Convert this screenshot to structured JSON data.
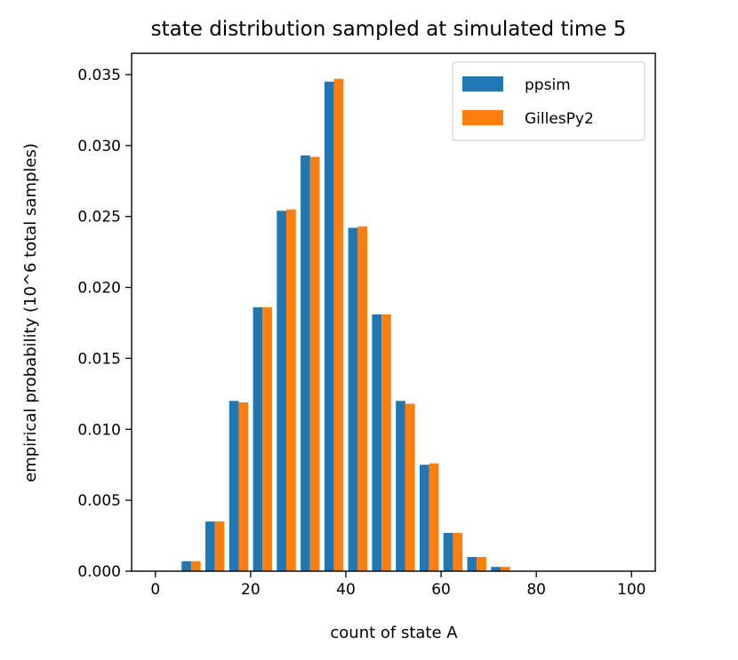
{
  "chart_data": {
    "type": "bar",
    "title": "state distribution sampled at simulated time 5",
    "xlabel": "count of state A",
    "ylabel": "empirical probability (10^6 total samples)",
    "xlim": [
      -5,
      105
    ],
    "ylim": [
      0,
      0.0365
    ],
    "xticks": [
      "0",
      "20",
      "40",
      "60",
      "80",
      "100"
    ],
    "yticks": [
      "0.000",
      "0.005",
      "0.010",
      "0.015",
      "0.020",
      "0.025",
      "0.030",
      "0.035"
    ],
    "bin_edges": [
      5,
      10,
      15,
      20,
      25,
      30,
      35,
      40,
      45,
      50,
      55,
      60,
      65,
      70,
      75,
      80
    ],
    "series": [
      {
        "name": "ppsim",
        "color": "#1f77b4",
        "values": [
          0.0007,
          0.0035,
          0.012,
          0.0186,
          0.0254,
          0.0293,
          0.0345,
          0.0242,
          0.0181,
          0.012,
          0.0075,
          0.0027,
          0.001,
          0.0003,
          0.0
        ]
      },
      {
        "name": "GillesPy2",
        "color": "#ff7f0e",
        "values": [
          0.0007,
          0.0035,
          0.0119,
          0.0186,
          0.0255,
          0.0292,
          0.0347,
          0.0243,
          0.0181,
          0.0118,
          0.0076,
          0.0027,
          0.001,
          0.0003,
          0.0
        ]
      }
    ],
    "legend_position": "top-right",
    "grid": false
  }
}
